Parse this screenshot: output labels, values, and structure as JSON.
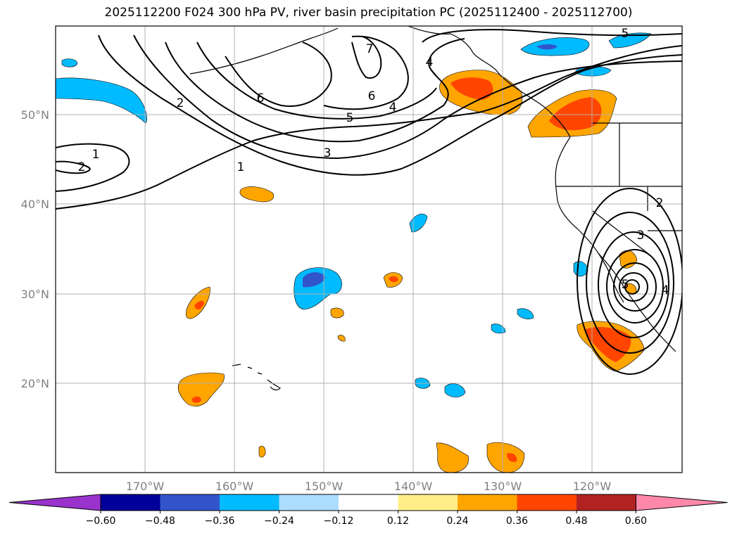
{
  "title": "2025112200 F024 300 hPa PV, river basin precipitation PC (2025112400 - 2025112700)",
  "lat_labels": [
    "50°N",
    "40°N",
    "30°N",
    "20°N"
  ],
  "lon_labels": [
    "170°W",
    "160°W",
    "150°W",
    "140°W",
    "130°W",
    "120°W"
  ],
  "colorbar": {
    "ticks": [
      "−0.60",
      "−0.48",
      "−0.36",
      "−0.24",
      "−0.12",
      "0.12",
      "0.24",
      "0.36",
      "0.48",
      "0.60"
    ],
    "colors": [
      "#9933cc",
      "#000099",
      "#3355cc",
      "#00bbff",
      "#aaddff",
      "#ffffff",
      "#ffee88",
      "#ffa500",
      "#ff4500",
      "#b22222",
      "#ff88aa"
    ]
  },
  "pv_contour_labels": [
    "1",
    "2",
    "1",
    "2",
    "3",
    "4",
    "5",
    "6",
    "7",
    "4",
    "5",
    "6",
    "2",
    "3",
    "4",
    "5"
  ],
  "colors": {
    "land_line": "#000000",
    "grid": "#b0b0b0",
    "pv_line": "#000000"
  }
}
